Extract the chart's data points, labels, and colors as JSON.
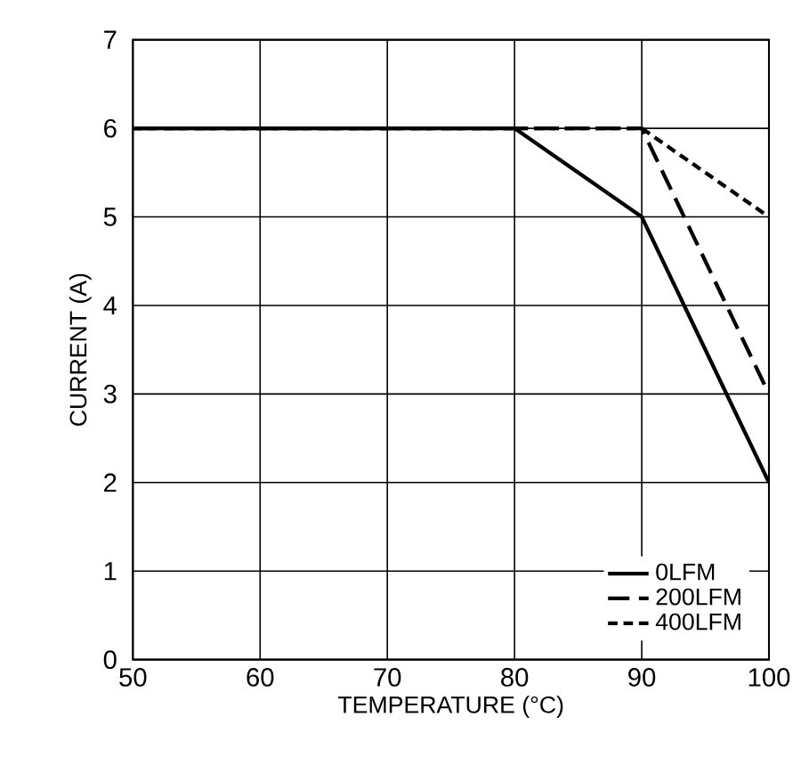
{
  "chart_data": {
    "type": "line",
    "xlabel": "TEMPERATURE (°C)",
    "ylabel": "CURRENT (A)",
    "series": [
      {
        "name": "0LFM",
        "color": "#000000",
        "x": [
          50,
          80,
          90,
          100
        ],
        "values": [
          6,
          6,
          5,
          2
        ],
        "line_style": "solid"
      },
      {
        "name": "200LFM",
        "color": "#000000",
        "x": [
          50,
          90,
          100
        ],
        "values": [
          6,
          6,
          3
        ],
        "line_style": "dashed"
      },
      {
        "name": "400LFM",
        "color": "#000000",
        "x": [
          50,
          90,
          100
        ],
        "values": [
          6,
          6,
          5
        ],
        "line_style": "dashed"
      }
    ],
    "xlim": [
      50,
      100
    ],
    "xticks": [
      50,
      60,
      70,
      80,
      90,
      100
    ],
    "ylim": [
      0,
      7
    ],
    "yticks": [
      0,
      1,
      2,
      3,
      4,
      5,
      6,
      7
    ],
    "grid": true,
    "legend": "bottom right",
    "marker": "none"
  }
}
